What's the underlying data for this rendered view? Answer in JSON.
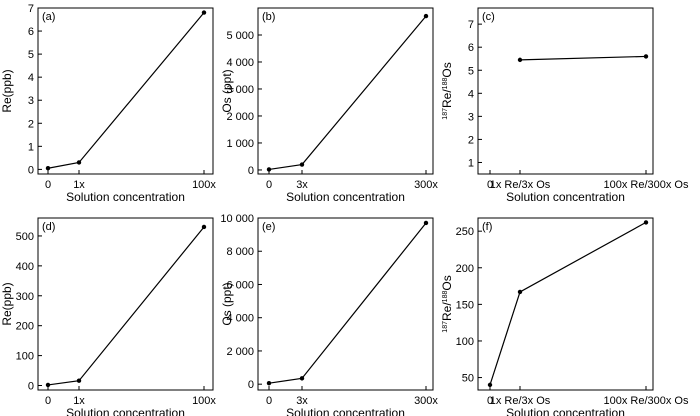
{
  "chart_data": [
    {
      "panel": "(a)",
      "type": "line",
      "ylabel": "Re(ppb)",
      "xlabel": "Solution concentration",
      "x_tick_labels": [
        "0",
        "1x",
        "100x"
      ],
      "x": [
        0,
        1,
        100
      ],
      "y": [
        0.05,
        0.3,
        6.8
      ],
      "ylim": [
        -0.2,
        7
      ],
      "y_ticks": [
        "0",
        "1",
        "2",
        "3",
        "4",
        "5",
        "6",
        "7"
      ],
      "y_tick_values": [
        0,
        1,
        2,
        3,
        4,
        5,
        6,
        7
      ]
    },
    {
      "panel": "(b)",
      "type": "line",
      "ylabel": "Os (ppt)",
      "xlabel": "Solution concentration",
      "x_tick_labels": [
        "0",
        "3x",
        "300x"
      ],
      "x": [
        0,
        3,
        300
      ],
      "y": [
        20,
        200,
        5700
      ],
      "ylim": [
        -150,
        6000
      ],
      "y_ticks": [
        "0",
        "1 000",
        "2 000",
        "3 000",
        "4 000",
        "5 000"
      ],
      "y_tick_values": [
        0,
        1000,
        2000,
        3000,
        4000,
        5000
      ]
    },
    {
      "panel": "(c)",
      "type": "line",
      "ylabel": "187Re/188Os",
      "xlabel": "Solution concentration",
      "x_tick_labels": [
        "0",
        "1x Re/3x Os",
        "100x Re/300x Os"
      ],
      "x": [
        1,
        100
      ],
      "y": [
        5.45,
        5.6
      ],
      "ylim": [
        0.5,
        7.7
      ],
      "y_ticks": [
        "1",
        "2",
        "3",
        "4",
        "5",
        "6",
        "7"
      ],
      "y_tick_values": [
        1,
        2,
        3,
        4,
        5,
        6,
        7
      ]
    },
    {
      "panel": "(d)",
      "type": "line",
      "ylabel": "Re(ppb)",
      "xlabel": "Solution concentration",
      "x_tick_labels": [
        "0",
        "1x",
        "100x"
      ],
      "x": [
        0,
        1,
        100
      ],
      "y": [
        2,
        16,
        530
      ],
      "ylim": [
        -15,
        560
      ],
      "y_ticks": [
        "0",
        "100",
        "200",
        "300",
        "400",
        "500"
      ],
      "y_tick_values": [
        0,
        100,
        200,
        300,
        400,
        500
      ]
    },
    {
      "panel": "(e)",
      "type": "line",
      "ylabel": "Os (ppt)",
      "xlabel": "Solution concentration",
      "x_tick_labels": [
        "0",
        "3x",
        "300x"
      ],
      "x": [
        0,
        3,
        300
      ],
      "y": [
        60,
        350,
        9700
      ],
      "ylim": [
        -350,
        10000
      ],
      "y_ticks": [
        "0",
        "2 000",
        "4 000",
        "6 000",
        "8 000",
        "10 000"
      ],
      "y_tick_values": [
        0,
        2000,
        4000,
        6000,
        8000,
        10000
      ]
    },
    {
      "panel": "(f)",
      "type": "line",
      "ylabel": "187Re/188Os",
      "xlabel": "Solution concentration",
      "x_tick_labels": [
        "0",
        "1x Re/3x Os",
        "100x Re/300x Os"
      ],
      "x": [
        0,
        1,
        100
      ],
      "y": [
        40,
        167,
        262
      ],
      "ylim": [
        33,
        268
      ],
      "y_ticks": [
        "50",
        "100",
        "150",
        "200",
        "250"
      ],
      "y_tick_values": [
        50,
        100,
        150,
        200,
        250
      ]
    }
  ]
}
